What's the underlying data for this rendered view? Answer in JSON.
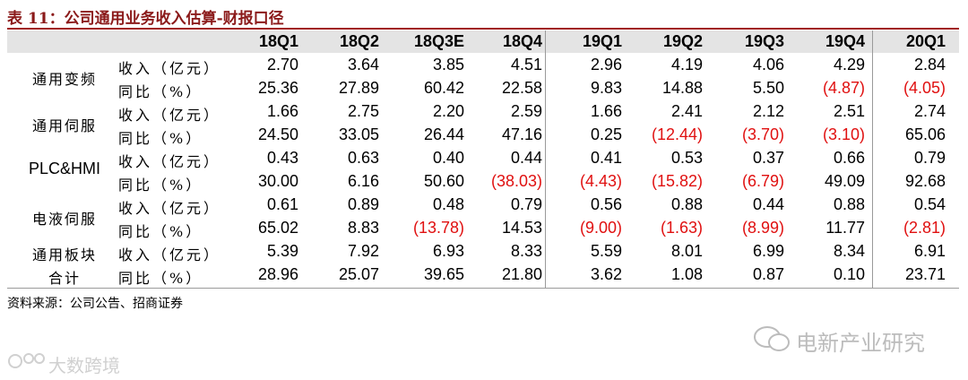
{
  "title": "表 11：公司通用业务收入估算-财报口径",
  "header": {
    "columns": [
      "18Q1",
      "18Q2",
      "18Q3E",
      "18Q4",
      "19Q1",
      "19Q2",
      "19Q3",
      "19Q4",
      "20Q1"
    ]
  },
  "table": {
    "groups": [
      {
        "label": [
          "通用变频"
        ],
        "rows": [
          {
            "metric": "收入（亿元）",
            "values": [
              "2.70",
              "3.64",
              "3.85",
              "4.51",
              "2.96",
              "4.19",
              "4.06",
              "4.29",
              "2.84"
            ]
          },
          {
            "metric": "同比（%）",
            "values": [
              "25.36",
              "27.89",
              "60.42",
              "22.58",
              "9.83",
              "14.88",
              "5.50",
              "(4.87)",
              "(4.05)"
            ]
          }
        ]
      },
      {
        "label": [
          "通用伺服"
        ],
        "rows": [
          {
            "metric": "收入（亿元）",
            "values": [
              "1.66",
              "2.75",
              "2.20",
              "2.59",
              "1.66",
              "2.41",
              "2.12",
              "2.51",
              "2.74"
            ]
          },
          {
            "metric": "同比（%）",
            "values": [
              "24.50",
              "33.05",
              "26.44",
              "47.16",
              "0.25",
              "(12.44)",
              "(3.70)",
              "(3.10)",
              "65.06"
            ]
          }
        ]
      },
      {
        "label": [
          "PLC&HMI"
        ],
        "rows": [
          {
            "metric": "收入（亿元）",
            "values": [
              "0.43",
              "0.63",
              "0.40",
              "0.44",
              "0.41",
              "0.53",
              "0.37",
              "0.66",
              "0.79"
            ]
          },
          {
            "metric": "同比（%）",
            "values": [
              "30.00",
              "6.16",
              "50.60",
              "(38.03)",
              "(4.43)",
              "(15.82)",
              "(6.79)",
              "49.09",
              "92.68"
            ]
          }
        ]
      },
      {
        "label": [
          "电液伺服"
        ],
        "rows": [
          {
            "metric": "收入（亿元）",
            "values": [
              "0.61",
              "0.89",
              "0.48",
              "0.79",
              "0.56",
              "0.88",
              "0.44",
              "0.88",
              "0.54"
            ]
          },
          {
            "metric": "同比（%）",
            "values": [
              "65.02",
              "8.83",
              "(13.78)",
              "14.53",
              "(9.00)",
              "(1.63)",
              "(8.99)",
              "11.77",
              "(2.81)"
            ]
          }
        ]
      },
      {
        "label": [
          "通用板块",
          "合计"
        ],
        "rows": [
          {
            "metric": "收入（亿元）",
            "values": [
              "5.39",
              "7.92",
              "6.93",
              "8.33",
              "5.59",
              "8.01",
              "6.99",
              "8.34",
              "6.91"
            ]
          },
          {
            "metric": "同比（%）",
            "values": [
              "28.96",
              "25.07",
              "39.65",
              "21.80",
              "3.62",
              "1.08",
              "0.87",
              "0.10",
              "23.71"
            ]
          }
        ]
      }
    ]
  },
  "source": "资料来源：公司公告、招商证券",
  "watermarks": {
    "right": "电新产业研究",
    "left": "大数跨境"
  }
}
